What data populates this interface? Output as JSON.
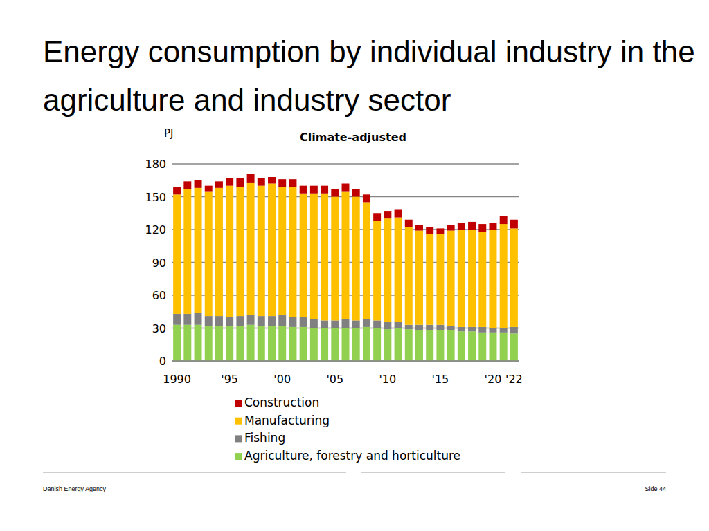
{
  "chart_data": {
    "type": "bar",
    "title": "Energy consumption by individual industry in the agriculture and industry sector",
    "subtitle": "Climate-adjusted",
    "y_label": "PJ",
    "categories": [
      "1990",
      null,
      null,
      null,
      null,
      "'95",
      null,
      null,
      null,
      null,
      "'00",
      null,
      null,
      null,
      null,
      "'05",
      null,
      null,
      null,
      null,
      "'10",
      null,
      null,
      null,
      null,
      "'15",
      null,
      null,
      null,
      null,
      "'20",
      null,
      "'22"
    ],
    "series": [
      {
        "name": "Agriculture, forestry and horticulture",
        "color": "#92d050",
        "values": [
          33,
          33,
          33,
          32,
          32,
          32,
          32,
          33,
          32,
          32,
          32,
          31,
          31,
          30,
          30,
          30,
          30,
          30,
          31,
          30,
          29,
          30,
          29,
          28,
          28,
          28,
          28,
          27,
          27,
          26,
          26,
          26,
          25
        ]
      },
      {
        "name": "Fishing",
        "color": "#808080",
        "values": [
          10,
          10,
          11,
          9,
          9,
          8,
          9,
          9,
          9,
          9,
          10,
          9,
          9,
          8,
          7,
          7,
          8,
          7,
          7,
          7,
          7,
          6,
          4,
          5,
          5,
          5,
          4,
          4,
          4,
          5,
          4,
          4,
          6
        ]
      },
      {
        "name": "Manufacturing",
        "color": "#ffc000",
        "values": [
          109,
          114,
          114,
          114,
          117,
          120,
          118,
          121,
          119,
          121,
          117,
          119,
          113,
          115,
          116,
          113,
          117,
          113,
          107,
          91,
          94,
          95,
          89,
          86,
          83,
          83,
          87,
          89,
          89,
          87,
          90,
          95,
          90
        ]
      },
      {
        "name": "Construction",
        "color": "#c00000",
        "values": [
          7,
          7,
          7,
          5,
          6,
          7,
          8,
          8,
          7,
          6,
          7,
          7,
          7,
          7,
          7,
          7,
          7,
          7,
          7,
          7,
          7,
          7,
          7,
          5,
          6,
          5,
          5,
          6,
          7,
          7,
          6,
          7,
          8
        ]
      }
    ],
    "stacked": true,
    "grid": true,
    "legend": "bottom",
    "ylim": [
      0,
      180
    ],
    "yticks": [
      0,
      30,
      60,
      90,
      120,
      150,
      180
    ]
  },
  "footer": {
    "left": "Danish Energy Agency",
    "right": "Side 44"
  }
}
